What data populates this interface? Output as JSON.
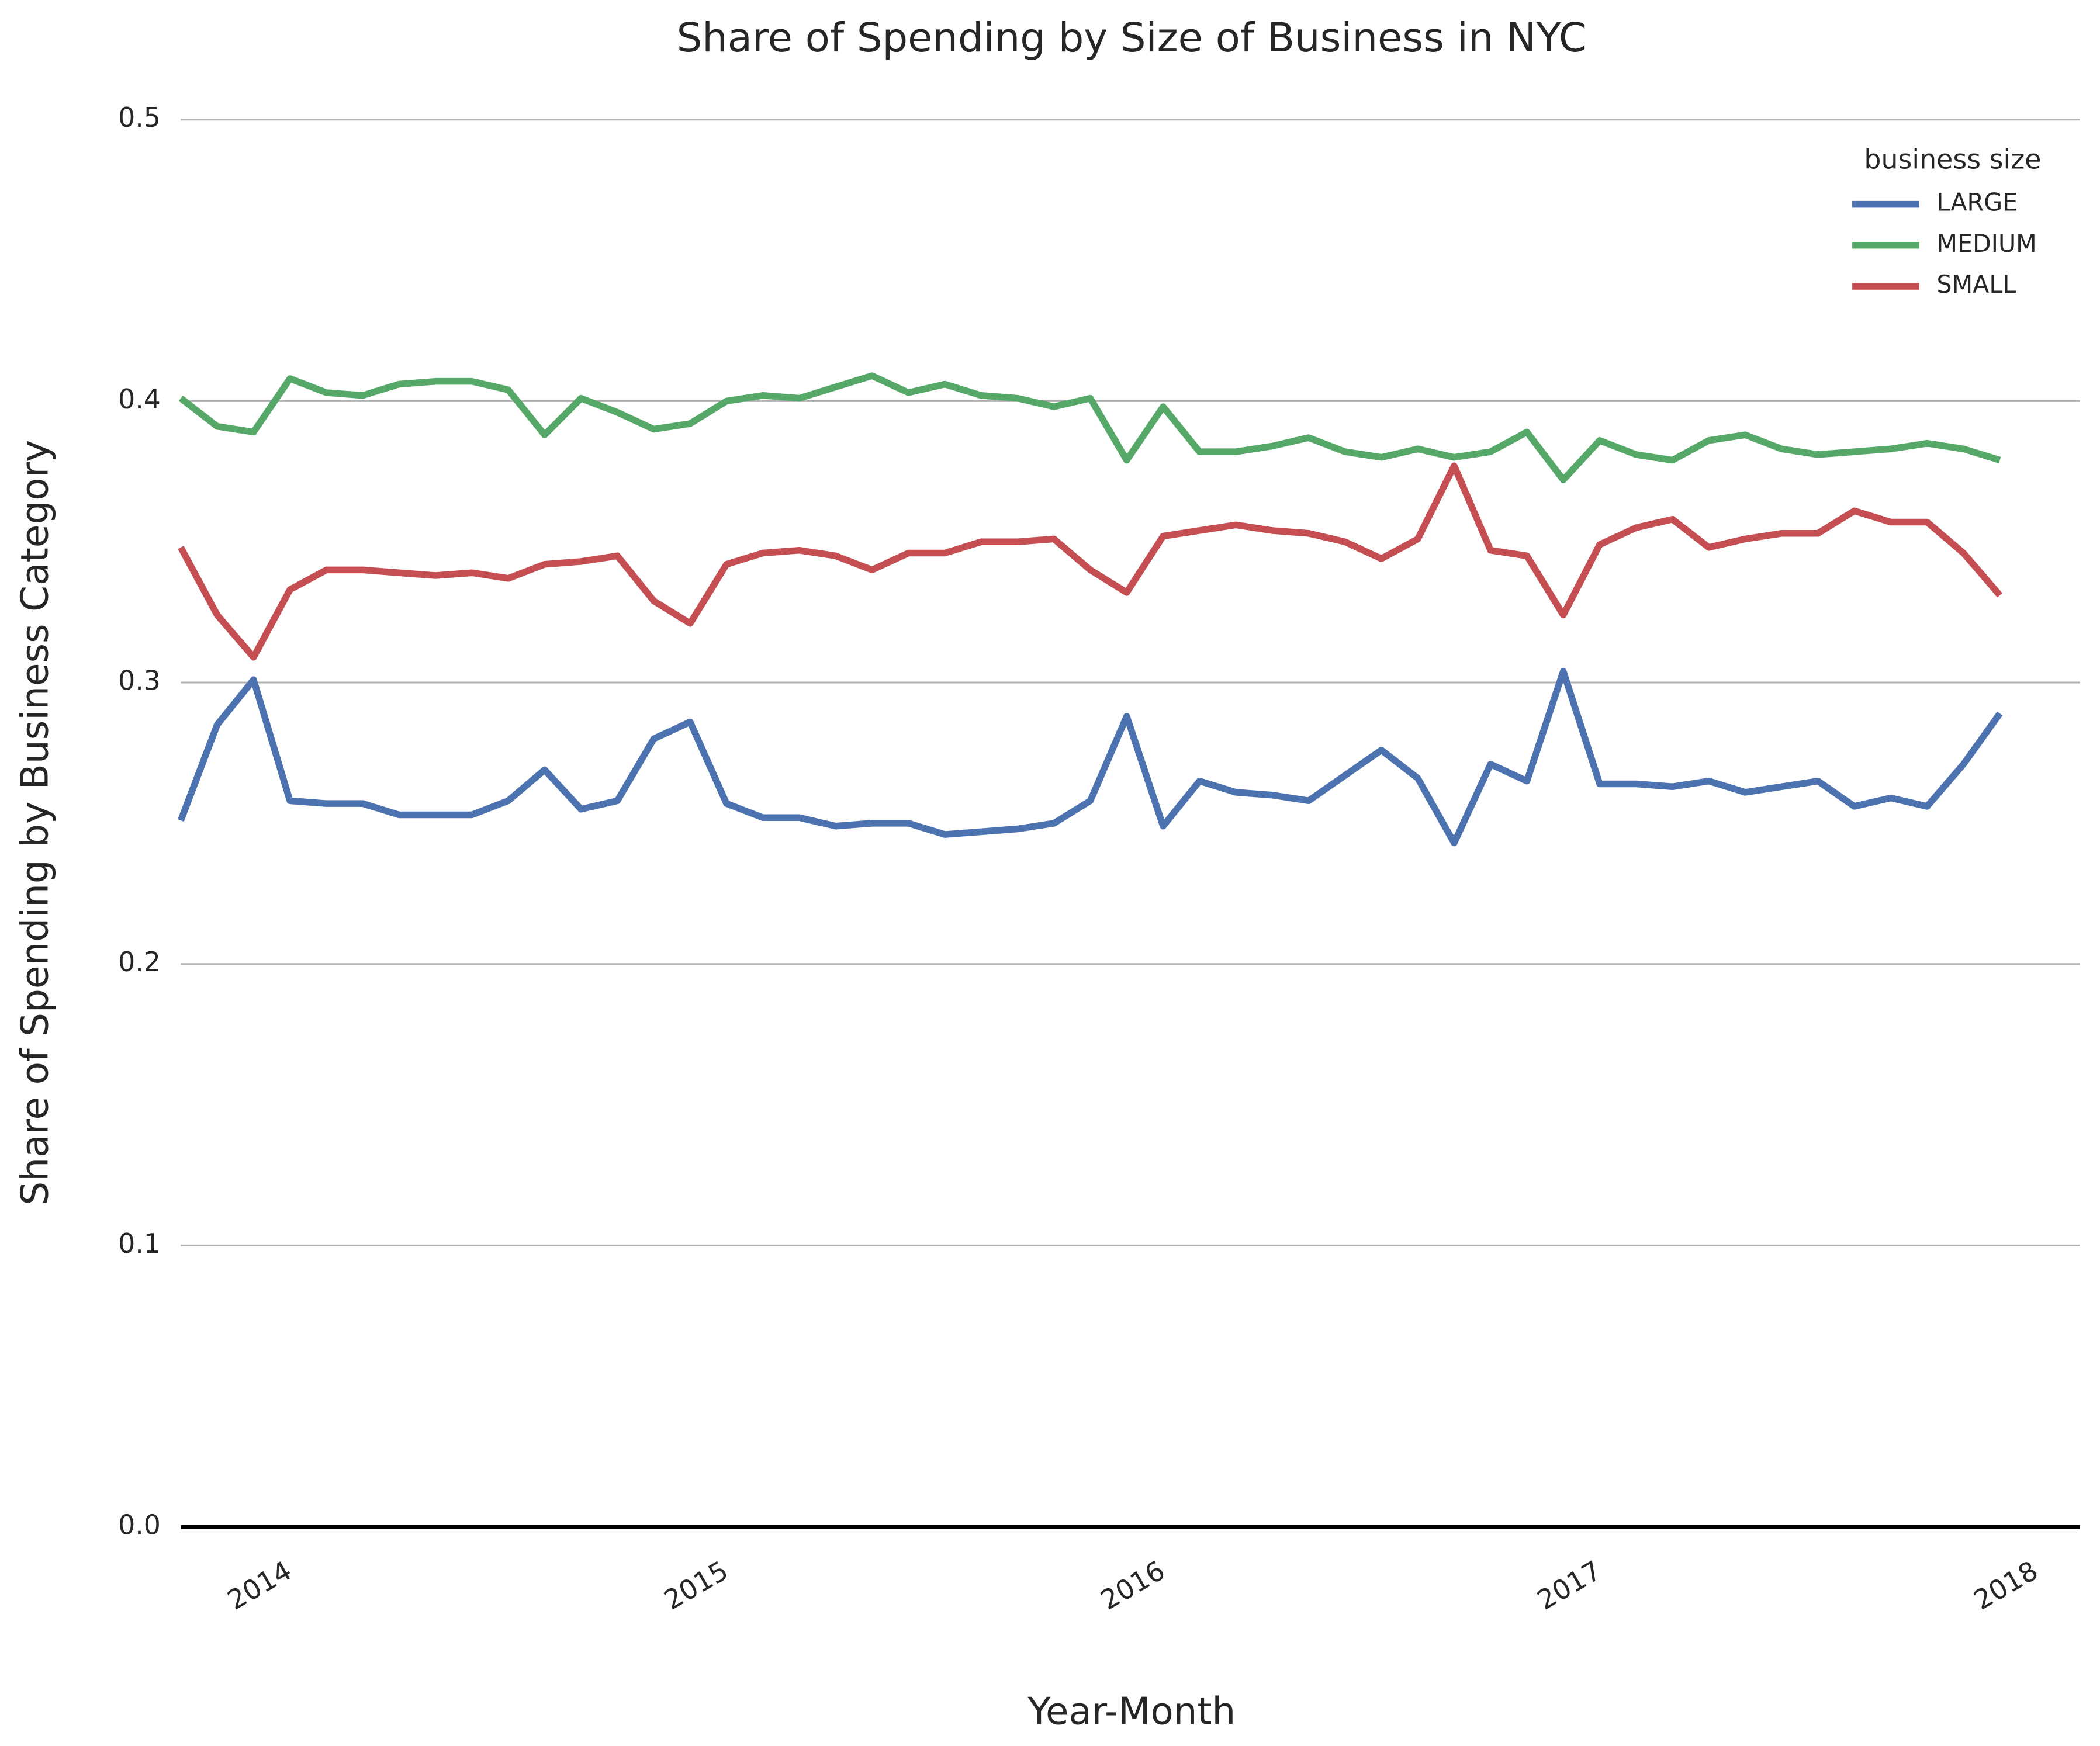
{
  "chart_data": {
    "type": "line",
    "title": "Share of Spending by Size of Business in NYC",
    "xlabel": "Year-Month",
    "ylabel": "Share of Spending by Business Category",
    "legend_title": "business size",
    "legend": "upper right",
    "grid": true,
    "x": [
      "2013-10",
      "2013-11",
      "2013-12",
      "2014-01",
      "2014-02",
      "2014-03",
      "2014-04",
      "2014-05",
      "2014-06",
      "2014-07",
      "2014-08",
      "2014-09",
      "2014-10",
      "2014-11",
      "2014-12",
      "2015-01",
      "2015-02",
      "2015-03",
      "2015-04",
      "2015-05",
      "2015-06",
      "2015-07",
      "2015-08",
      "2015-09",
      "2015-10",
      "2015-11",
      "2015-12",
      "2016-01",
      "2016-02",
      "2016-03",
      "2016-04",
      "2016-05",
      "2016-06",
      "2016-07",
      "2016-08",
      "2016-09",
      "2016-10",
      "2016-11",
      "2016-12",
      "2017-01",
      "2017-02",
      "2017-03",
      "2017-04",
      "2017-05",
      "2017-06",
      "2017-07",
      "2017-08",
      "2017-09",
      "2017-10",
      "2017-11",
      "2017-12"
    ],
    "xlim": [
      2013.75,
      2018.1
    ],
    "xticks": [
      2014,
      2015,
      2016,
      2017,
      2018
    ],
    "ylim": [
      0,
      0.5
    ],
    "yticks": [
      {
        "value": 0,
        "label": "0.0"
      },
      0.1,
      0.2,
      0.3,
      0.4,
      0.5
    ],
    "series": [
      {
        "name": "LARGE",
        "color": "#4c72b0",
        "values": [
          0.251,
          0.285,
          0.301,
          0.258,
          0.257,
          0.257,
          0.253,
          0.253,
          0.253,
          0.258,
          0.269,
          0.255,
          0.258,
          0.28,
          0.286,
          0.257,
          0.252,
          0.252,
          0.249,
          0.25,
          0.25,
          0.246,
          0.247,
          0.248,
          0.25,
          0.258,
          0.288,
          0.249,
          0.265,
          0.261,
          0.26,
          0.258,
          0.267,
          0.276,
          0.266,
          0.243,
          0.271,
          0.265,
          0.304,
          0.264,
          0.264,
          0.263,
          0.265,
          0.261,
          0.263,
          0.265,
          0.256,
          0.259,
          0.256,
          0.271,
          0.289
        ]
      },
      {
        "name": "MEDIUM",
        "color": "#55a868",
        "values": [
          0.401,
          0.391,
          0.389,
          0.408,
          0.403,
          0.402,
          0.406,
          0.407,
          0.407,
          0.404,
          0.388,
          0.401,
          0.396,
          0.39,
          0.392,
          0.4,
          0.402,
          0.401,
          0.405,
          0.409,
          0.403,
          0.406,
          0.402,
          0.401,
          0.398,
          0.401,
          0.379,
          0.398,
          0.382,
          0.382,
          0.384,
          0.387,
          0.382,
          0.38,
          0.383,
          0.38,
          0.382,
          0.389,
          0.372,
          0.386,
          0.381,
          0.379,
          0.386,
          0.388,
          0.383,
          0.381,
          0.382,
          0.383,
          0.385,
          0.383,
          0.379
        ]
      },
      {
        "name": "SMALL",
        "color": "#c44e52",
        "values": [
          0.348,
          0.324,
          0.309,
          0.333,
          0.34,
          0.34,
          0.339,
          0.338,
          0.339,
          0.337,
          0.342,
          0.343,
          0.345,
          0.329,
          0.321,
          0.342,
          0.346,
          0.347,
          0.345,
          0.34,
          0.346,
          0.346,
          0.35,
          0.35,
          0.351,
          0.34,
          0.332,
          0.352,
          0.354,
          0.356,
          0.354,
          0.353,
          0.35,
          0.344,
          0.351,
          0.377,
          0.347,
          0.345,
          0.324,
          0.349,
          0.355,
          0.358,
          0.348,
          0.351,
          0.353,
          0.353,
          0.361,
          0.357,
          0.357,
          0.346,
          0.331
        ]
      }
    ]
  }
}
